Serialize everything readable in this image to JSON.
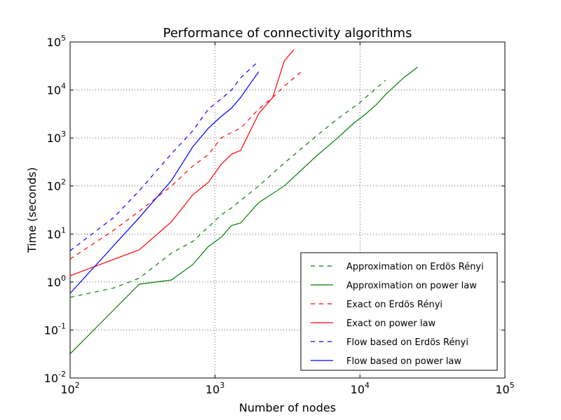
{
  "chart_data": {
    "type": "line",
    "title": "Performance of connectivity algorithms",
    "xlabel": "Number of nodes",
    "ylabel": "Time (seconds)",
    "xscale": "log",
    "yscale": "log",
    "xlim": [
      100,
      100000
    ],
    "ylim": [
      0.01,
      100000
    ],
    "grid": true,
    "legend_position": "lower-right",
    "x_ticks": [
      {
        "base": "10",
        "exp": "2",
        "value": 100
      },
      {
        "base": "10",
        "exp": "3",
        "value": 1000
      },
      {
        "base": "10",
        "exp": "4",
        "value": 10000
      },
      {
        "base": "10",
        "exp": "5",
        "value": 100000
      }
    ],
    "y_ticks": [
      {
        "base": "10",
        "exp": "-2",
        "value": 0.01
      },
      {
        "base": "10",
        "exp": "-1",
        "value": 0.1
      },
      {
        "base": "10",
        "exp": "0",
        "value": 1
      },
      {
        "base": "10",
        "exp": "1",
        "value": 10
      },
      {
        "base": "10",
        "exp": "2",
        "value": 100
      },
      {
        "base": "10",
        "exp": "3",
        "value": 1000
      },
      {
        "base": "10",
        "exp": "4",
        "value": 10000
      },
      {
        "base": "10",
        "exp": "5",
        "value": 100000
      }
    ],
    "series": [
      {
        "name": "Approximation on Erdös Rényi",
        "color": "#008000",
        "style": "dashed",
        "points": [
          [
            100,
            0.48
          ],
          [
            200,
            0.75
          ],
          [
            300,
            1.2
          ],
          [
            500,
            4.0
          ],
          [
            700,
            7.0
          ],
          [
            900,
            14
          ],
          [
            1100,
            25
          ],
          [
            1300,
            35
          ],
          [
            1500,
            50
          ],
          [
            2000,
            100
          ],
          [
            3000,
            300
          ],
          [
            5000,
            1100
          ],
          [
            7000,
            2500
          ],
          [
            10000,
            5500
          ],
          [
            13000,
            11000
          ],
          [
            15000,
            16000
          ]
        ]
      },
      {
        "name": "Approximation on power law",
        "color": "#008000",
        "style": "solid",
        "points": [
          [
            100,
            0.032
          ],
          [
            300,
            0.9
          ],
          [
            500,
            1.1
          ],
          [
            700,
            2.3
          ],
          [
            900,
            5.5
          ],
          [
            1100,
            8.5
          ],
          [
            1300,
            15
          ],
          [
            1500,
            17
          ],
          [
            2000,
            45
          ],
          [
            3000,
            100
          ],
          [
            5000,
            420
          ],
          [
            7000,
            1000
          ],
          [
            9000,
            2000
          ],
          [
            11000,
            3200
          ],
          [
            13000,
            5000
          ],
          [
            15000,
            8000
          ],
          [
            20000,
            18000
          ],
          [
            25000,
            30000
          ]
        ]
      },
      {
        "name": "Exact on Erdös Rényi",
        "color": "#ff0000",
        "style": "dashed",
        "points": [
          [
            100,
            3.0
          ],
          [
            200,
            12
          ],
          [
            300,
            30
          ],
          [
            500,
            100
          ],
          [
            700,
            260
          ],
          [
            900,
            450
          ],
          [
            1100,
            1000
          ],
          [
            1300,
            1300
          ],
          [
            1500,
            1600
          ],
          [
            2000,
            4000
          ],
          [
            2500,
            7000
          ],
          [
            3000,
            12000
          ],
          [
            4000,
            25000
          ]
        ]
      },
      {
        "name": "Exact on power law",
        "color": "#ff0000",
        "style": "solid",
        "points": [
          [
            100,
            1.35
          ],
          [
            300,
            4.7
          ],
          [
            500,
            18
          ],
          [
            700,
            65
          ],
          [
            900,
            120
          ],
          [
            1100,
            280
          ],
          [
            1300,
            460
          ],
          [
            1500,
            550
          ],
          [
            2000,
            3200
          ],
          [
            2500,
            7000
          ],
          [
            3000,
            40000
          ],
          [
            3500,
            70000
          ]
        ]
      },
      {
        "name": "Flow based on Erdös Rényi",
        "color": "#0000ff",
        "style": "dashed",
        "points": [
          [
            100,
            4.5
          ],
          [
            200,
            22
          ],
          [
            300,
            80
          ],
          [
            500,
            470
          ],
          [
            700,
            1400
          ],
          [
            900,
            4000
          ],
          [
            1100,
            6500
          ],
          [
            1300,
            10000
          ],
          [
            1500,
            18000
          ],
          [
            2000,
            40000
          ]
        ]
      },
      {
        "name": "Flow based on power law",
        "color": "#0000ff",
        "style": "solid",
        "points": [
          [
            100,
            0.58
          ],
          [
            300,
            22
          ],
          [
            500,
            130
          ],
          [
            700,
            650
          ],
          [
            900,
            1600
          ],
          [
            1100,
            2800
          ],
          [
            1300,
            4200
          ],
          [
            1500,
            7000
          ],
          [
            2000,
            24000
          ]
        ]
      }
    ]
  }
}
